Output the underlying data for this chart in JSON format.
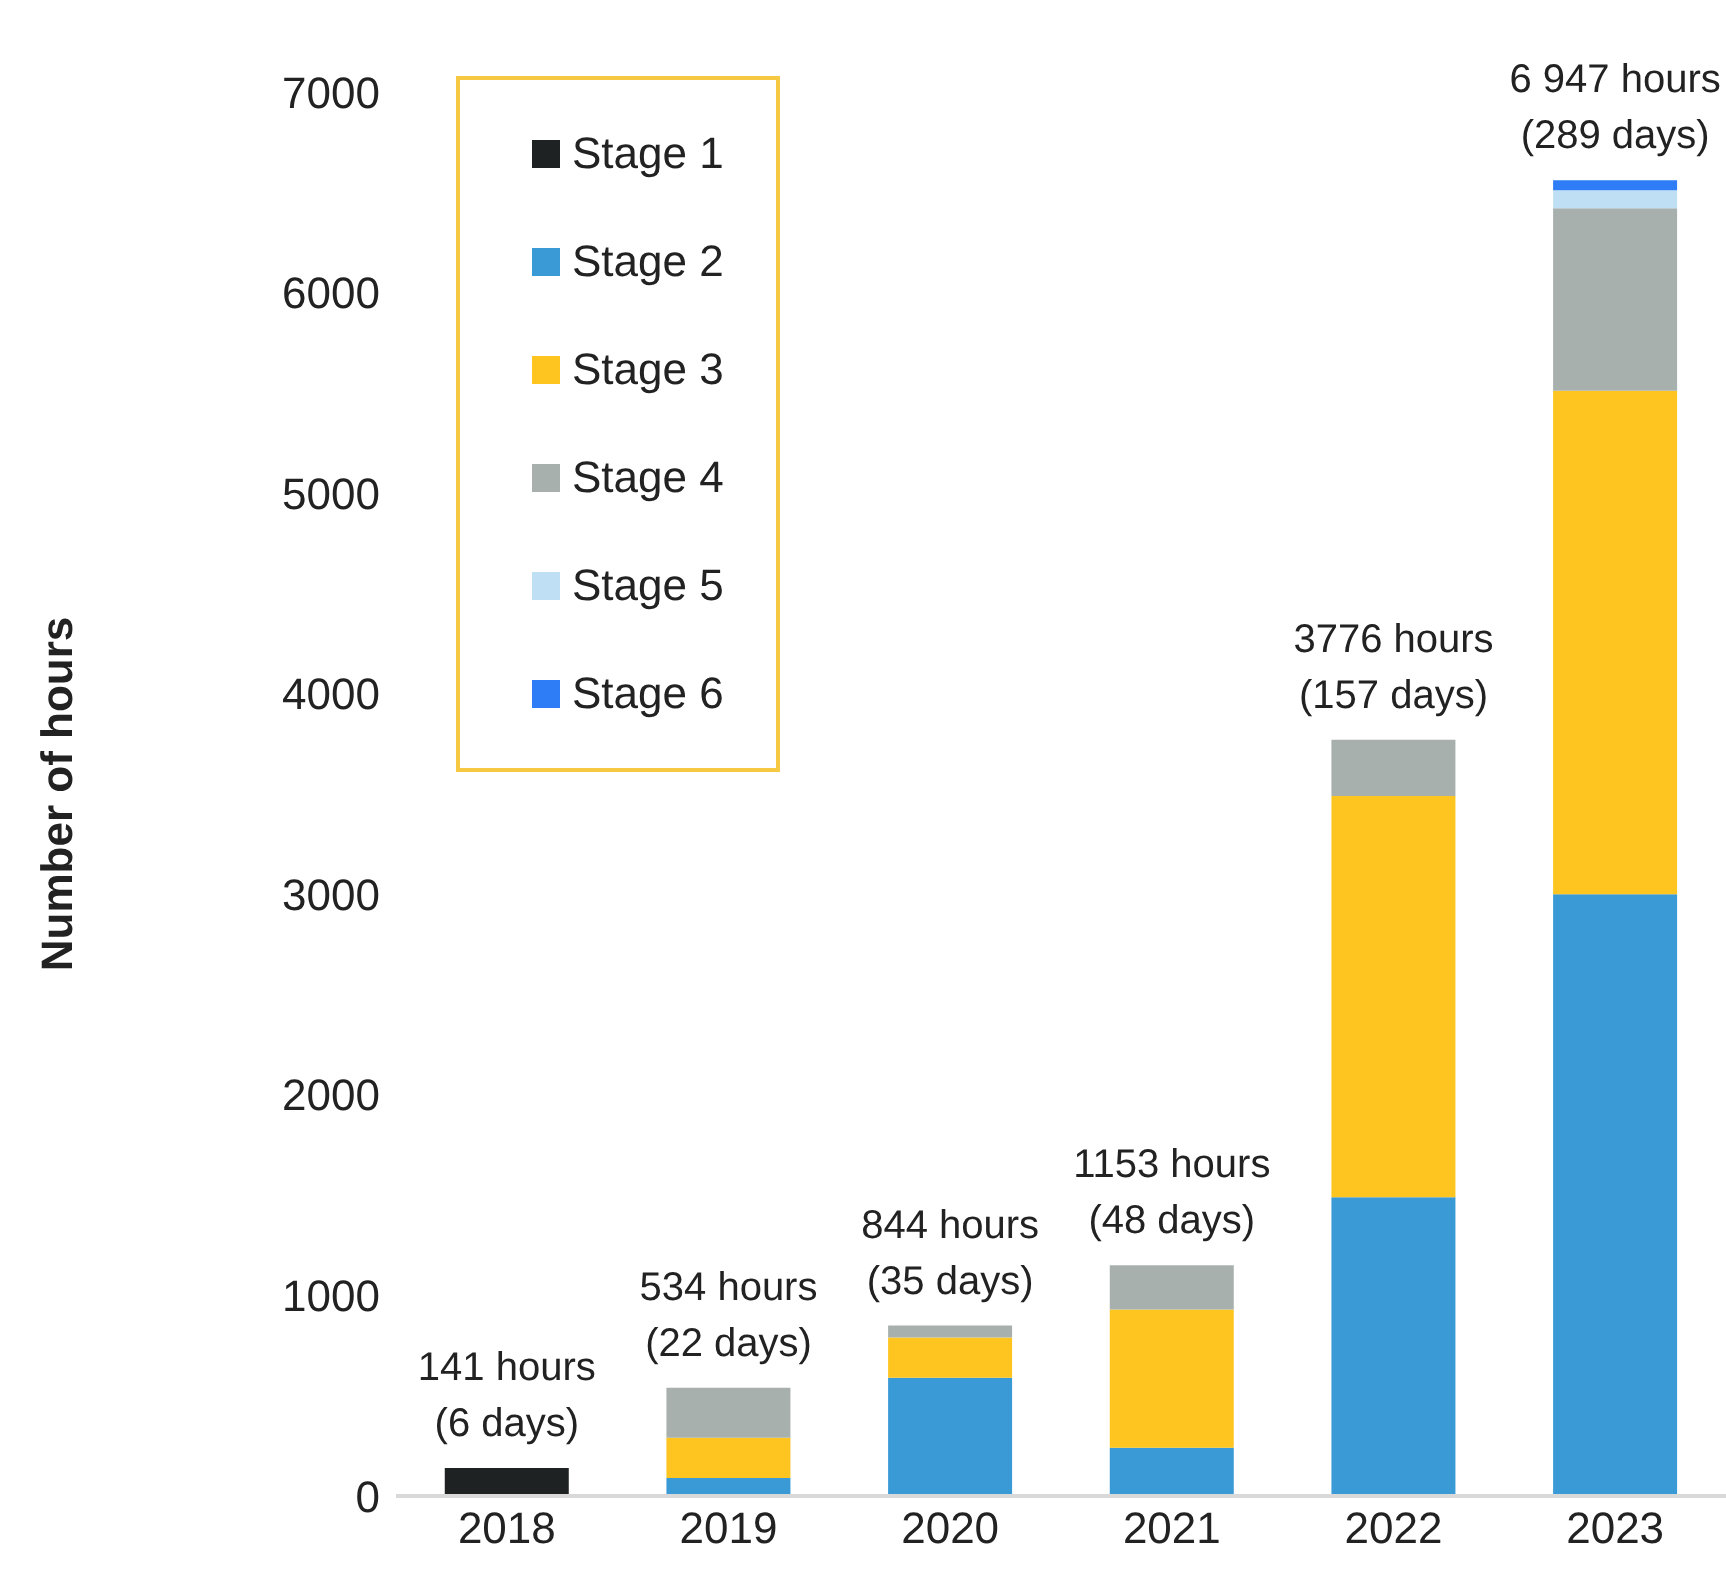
{
  "chart_data": {
    "type": "bar",
    "stacked": true,
    "ylabel": "Number of hours",
    "categories": [
      "2018",
      "2019",
      "2020",
      "2021",
      "2022",
      "2023"
    ],
    "series": [
      {
        "name": "Stage 1",
        "color": "#1f2223",
        "values": [
          140,
          null,
          null,
          null,
          null,
          null
        ]
      },
      {
        "name": "Stage 2",
        "color": "#3a9ad6",
        "values": [
          null,
          90,
          590,
          240,
          1490,
          3000
        ]
      },
      {
        "name": "Stage 3",
        "color": "#fec520",
        "values": [
          null,
          200,
          200,
          690,
          2000,
          2510
        ]
      },
      {
        "name": "Stage 4",
        "color": "#a8b0ae",
        "values": [
          null,
          250,
          60,
          220,
          280,
          910
        ]
      },
      {
        "name": "Stage 5",
        "color": "#bfe0f4",
        "values": [
          null,
          null,
          null,
          null,
          null,
          90
        ]
      },
      {
        "name": "Stage 6",
        "color": "#2e7cf6",
        "values": [
          null,
          null,
          null,
          null,
          null,
          50
        ]
      }
    ],
    "totals": [
      "141 hours\n(6 days)",
      "534 hours\n(22 days)",
      "844 hours\n(35 days)",
      "1153 hours\n(48 days)",
      "3776 hours\n(157 days)",
      "6 947 hours\n(289 days)"
    ],
    "ylim": [
      0,
      7000
    ],
    "yticks": [
      0,
      1000,
      2000,
      3000,
      4000,
      5000,
      6000,
      7000
    ],
    "grid": false,
    "legend": "top left"
  }
}
